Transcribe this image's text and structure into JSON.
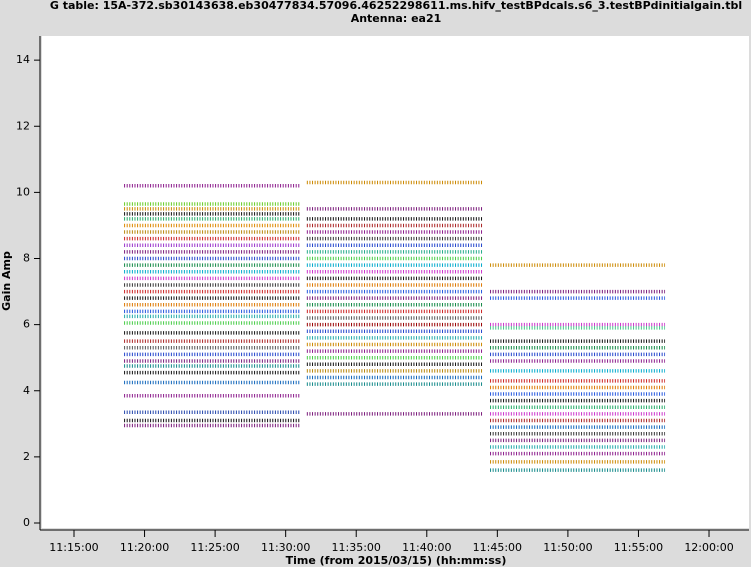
{
  "chart_data": {
    "type": "line",
    "linestyle": "dotted",
    "title": "G table: 15A-372.sb30143638.eb30477834.57096.46252298611.ms.hifv_testBPdcals.s6_3.testBPdinitialgain.tbl",
    "subtitle": "Antenna: ea21",
    "xlabel": "Time (from 2015/03/15) (hh:mm:ss)",
    "ylabel": "Gain Amp",
    "xlim": [
      40364,
      43370
    ],
    "ylim": [
      0,
      14.73
    ],
    "xticks": [
      {
        "value": 40500,
        "label": "11:15:00"
      },
      {
        "value": 40800,
        "label": "11:20:00"
      },
      {
        "value": 41100,
        "label": "11:25:00"
      },
      {
        "value": 41400,
        "label": "11:30:00"
      },
      {
        "value": 41700,
        "label": "11:35:00"
      },
      {
        "value": 42000,
        "label": "11:40:00"
      },
      {
        "value": 42300,
        "label": "11:45:00"
      },
      {
        "value": 42600,
        "label": "11:50:00"
      },
      {
        "value": 42900,
        "label": "11:55:00"
      },
      {
        "value": 43200,
        "label": "12:00:00"
      }
    ],
    "yticks": [
      0,
      2,
      4,
      6,
      8,
      10,
      12,
      14
    ],
    "series": [
      {
        "color": "#8b1a8b",
        "x": [
          40713,
          41461
        ],
        "values": [
          10.2,
          10.2
        ]
      },
      {
        "color": "#66cc22",
        "x": [
          40713,
          41461
        ],
        "values": [
          9.65,
          9.65
        ]
      },
      {
        "color": "#cc8800",
        "x": [
          40713,
          41461
        ],
        "values": [
          9.5,
          9.5
        ]
      },
      {
        "color": "#111111",
        "x": [
          40713,
          41461
        ],
        "values": [
          9.35,
          9.35
        ]
      },
      {
        "color": "#22aa66",
        "x": [
          40713,
          41461
        ],
        "values": [
          9.2,
          9.2
        ]
      },
      {
        "color": "#dd8800",
        "x": [
          40713,
          41461
        ],
        "values": [
          9.0,
          9.0
        ]
      },
      {
        "color": "#b8860b",
        "x": [
          40713,
          41461
        ],
        "values": [
          8.8,
          8.8
        ]
      },
      {
        "color": "#cc2222",
        "x": [
          40713,
          41461
        ],
        "values": [
          8.6,
          8.6
        ]
      },
      {
        "color": "#9933cc",
        "x": [
          40713,
          41461
        ],
        "values": [
          8.4,
          8.4
        ]
      },
      {
        "color": "#7a1a7a",
        "x": [
          40713,
          41461
        ],
        "values": [
          8.2,
          8.2
        ]
      },
      {
        "color": "#2244cc",
        "x": [
          40713,
          41461
        ],
        "values": [
          8.0,
          8.0
        ]
      },
      {
        "color": "#118844",
        "x": [
          40713,
          41461
        ],
        "values": [
          7.8,
          7.8
        ]
      },
      {
        "color": "#00aacc",
        "x": [
          40713,
          41461
        ],
        "values": [
          7.6,
          7.6
        ]
      },
      {
        "color": "#cc33cc",
        "x": [
          40713,
          41461
        ],
        "values": [
          7.4,
          7.4
        ]
      },
      {
        "color": "#333333",
        "x": [
          40713,
          41461
        ],
        "values": [
          7.2,
          7.2
        ]
      },
      {
        "color": "#cc2222",
        "x": [
          40713,
          41461
        ],
        "values": [
          7.0,
          7.0
        ]
      },
      {
        "color": "#111111",
        "x": [
          40713,
          41461
        ],
        "values": [
          6.8,
          6.8
        ]
      },
      {
        "color": "#dd7700",
        "x": [
          40713,
          41461
        ],
        "values": [
          6.6,
          6.6
        ]
      },
      {
        "color": "#2255dd",
        "x": [
          40713,
          41461
        ],
        "values": [
          6.4,
          6.4
        ]
      },
      {
        "color": "#22aaaa",
        "x": [
          40713,
          41461
        ],
        "values": [
          6.25,
          6.25
        ]
      },
      {
        "color": "#44cc44",
        "x": [
          40713,
          41461
        ],
        "values": [
          6.05,
          6.05
        ]
      },
      {
        "color": "#111111",
        "x": [
          40713,
          41461
        ],
        "values": [
          5.75,
          5.75
        ]
      },
      {
        "color": "#aa2222",
        "x": [
          40713,
          41461
        ],
        "values": [
          5.5,
          5.5
        ]
      },
      {
        "color": "#555555",
        "x": [
          40713,
          41461
        ],
        "values": [
          5.3,
          5.3
        ]
      },
      {
        "color": "#2244cc",
        "x": [
          40713,
          41461
        ],
        "values": [
          5.1,
          5.1
        ]
      },
      {
        "color": "#7a1a7a",
        "x": [
          40713,
          41461
        ],
        "values": [
          4.9,
          4.9
        ]
      },
      {
        "color": "#118888",
        "x": [
          40713,
          41461
        ],
        "values": [
          4.75,
          4.75
        ]
      },
      {
        "color": "#111111",
        "x": [
          40713,
          41461
        ],
        "values": [
          4.55,
          4.55
        ]
      },
      {
        "color": "#1166bb",
        "x": [
          40713,
          41461
        ],
        "values": [
          4.25,
          4.25
        ]
      },
      {
        "color": "#8b1a8b",
        "x": [
          40713,
          41461
        ],
        "values": [
          3.85,
          3.85
        ]
      },
      {
        "color": "#2244aa",
        "x": [
          40713,
          41461
        ],
        "values": [
          3.35,
          3.35
        ]
      },
      {
        "color": "#111111",
        "x": [
          40713,
          41461
        ],
        "values": [
          3.1,
          3.1
        ]
      },
      {
        "color": "#7a1a7a",
        "x": [
          40713,
          41461
        ],
        "values": [
          2.95,
          2.95
        ]
      },
      {
        "color": "#cc8800",
        "x": [
          41490,
          42239
        ],
        "values": [
          10.3,
          10.3
        ]
      },
      {
        "color": "#7a1a7a",
        "x": [
          41490,
          42239
        ],
        "values": [
          9.5,
          9.5
        ]
      },
      {
        "color": "#111111",
        "x": [
          41490,
          42239
        ],
        "values": [
          9.2,
          9.2
        ]
      },
      {
        "color": "#aa2222",
        "x": [
          41490,
          42239
        ],
        "values": [
          9.0,
          9.0
        ]
      },
      {
        "color": "#8b1a8b",
        "x": [
          41490,
          42239
        ],
        "values": [
          8.8,
          8.8
        ]
      },
      {
        "color": "#333333",
        "x": [
          41490,
          42239
        ],
        "values": [
          8.6,
          8.6
        ]
      },
      {
        "color": "#2244cc",
        "x": [
          41490,
          42239
        ],
        "values": [
          8.4,
          8.4
        ]
      },
      {
        "color": "#22aa88",
        "x": [
          41490,
          42239
        ],
        "values": [
          8.2,
          8.2
        ]
      },
      {
        "color": "#44cc44",
        "x": [
          41490,
          42239
        ],
        "values": [
          8.0,
          8.0
        ]
      },
      {
        "color": "#00aacc",
        "x": [
          41490,
          42239
        ],
        "values": [
          7.8,
          7.8
        ]
      },
      {
        "color": "#cc33cc",
        "x": [
          41490,
          42239
        ],
        "values": [
          7.6,
          7.6
        ]
      },
      {
        "color": "#111111",
        "x": [
          41490,
          42239
        ],
        "values": [
          7.4,
          7.4
        ]
      },
      {
        "color": "#dd7700",
        "x": [
          41490,
          42239
        ],
        "values": [
          7.2,
          7.2
        ]
      },
      {
        "color": "#2255dd",
        "x": [
          41490,
          42239
        ],
        "values": [
          7.0,
          7.0
        ]
      },
      {
        "color": "#7a1a7a",
        "x": [
          41490,
          42239
        ],
        "values": [
          6.8,
          6.8
        ]
      },
      {
        "color": "#118844",
        "x": [
          41490,
          42239
        ],
        "values": [
          6.6,
          6.6
        ]
      },
      {
        "color": "#cc2222",
        "x": [
          41490,
          42239
        ],
        "values": [
          6.4,
          6.4
        ]
      },
      {
        "color": "#555555",
        "x": [
          41490,
          42239
        ],
        "values": [
          6.2,
          6.2
        ]
      },
      {
        "color": "#990000",
        "x": [
          41490,
          42239
        ],
        "values": [
          6.0,
          6.0
        ]
      },
      {
        "color": "#2244cc",
        "x": [
          41490,
          42239
        ],
        "values": [
          5.8,
          5.8
        ]
      },
      {
        "color": "#22aaaa",
        "x": [
          41490,
          42239
        ],
        "values": [
          5.6,
          5.6
        ]
      },
      {
        "color": "#cc8800",
        "x": [
          41490,
          42239
        ],
        "values": [
          5.4,
          5.4
        ]
      },
      {
        "color": "#8b1a8b",
        "x": [
          41490,
          42239
        ],
        "values": [
          5.2,
          5.2
        ]
      },
      {
        "color": "#44cc44",
        "x": [
          41490,
          42239
        ],
        "values": [
          5.0,
          5.0
        ]
      },
      {
        "color": "#111111",
        "x": [
          41490,
          42239
        ],
        "values": [
          4.8,
          4.8
        ]
      },
      {
        "color": "#b8860b",
        "x": [
          41490,
          42239
        ],
        "values": [
          4.6,
          4.6
        ]
      },
      {
        "color": "#1166bb",
        "x": [
          41490,
          42239
        ],
        "values": [
          4.4,
          4.4
        ]
      },
      {
        "color": "#118888",
        "x": [
          41490,
          42239
        ],
        "values": [
          4.2,
          4.2
        ]
      },
      {
        "color": "#7a1a7a",
        "x": [
          41490,
          42239
        ],
        "values": [
          3.3,
          3.3
        ]
      },
      {
        "color": "#cc8800",
        "x": [
          42269,
          43013
        ],
        "values": [
          7.8,
          7.8
        ]
      },
      {
        "color": "#7a1a7a",
        "x": [
          42269,
          43013
        ],
        "values": [
          7.0,
          7.0
        ]
      },
      {
        "color": "#2255dd",
        "x": [
          42269,
          43013
        ],
        "values": [
          6.8,
          6.8
        ]
      },
      {
        "color": "#cc33cc",
        "x": [
          42269,
          43013
        ],
        "values": [
          6.0,
          6.0
        ]
      },
      {
        "color": "#44cc88",
        "x": [
          42269,
          43013
        ],
        "values": [
          5.9,
          5.9
        ]
      },
      {
        "color": "#111111",
        "x": [
          42269,
          43013
        ],
        "values": [
          5.5,
          5.5
        ]
      },
      {
        "color": "#118844",
        "x": [
          42269,
          43013
        ],
        "values": [
          5.3,
          5.3
        ]
      },
      {
        "color": "#2244cc",
        "x": [
          42269,
          43013
        ],
        "values": [
          5.1,
          5.1
        ]
      },
      {
        "color": "#8b1a8b",
        "x": [
          42269,
          43013
        ],
        "values": [
          4.9,
          4.9
        ]
      },
      {
        "color": "#00aacc",
        "x": [
          42269,
          43013
        ],
        "values": [
          4.6,
          4.6
        ]
      },
      {
        "color": "#cc2222",
        "x": [
          42269,
          43013
        ],
        "values": [
          4.3,
          4.3
        ]
      },
      {
        "color": "#dd7700",
        "x": [
          42269,
          43013
        ],
        "values": [
          4.1,
          4.1
        ]
      },
      {
        "color": "#2255dd",
        "x": [
          42269,
          43013
        ],
        "values": [
          3.9,
          3.9
        ]
      },
      {
        "color": "#111111",
        "x": [
          42269,
          43013
        ],
        "values": [
          3.7,
          3.7
        ]
      },
      {
        "color": "#22aa66",
        "x": [
          42269,
          43013
        ],
        "values": [
          3.5,
          3.5
        ]
      },
      {
        "color": "#cc33cc",
        "x": [
          42269,
          43013
        ],
        "values": [
          3.3,
          3.3
        ]
      },
      {
        "color": "#aa2222",
        "x": [
          42269,
          43013
        ],
        "values": [
          3.1,
          3.1
        ]
      },
      {
        "color": "#1166bb",
        "x": [
          42269,
          43013
        ],
        "values": [
          2.9,
          2.9
        ]
      },
      {
        "color": "#333333",
        "x": [
          42269,
          43013
        ],
        "values": [
          2.7,
          2.7
        ]
      },
      {
        "color": "#7a1a7a",
        "x": [
          42269,
          43013
        ],
        "values": [
          2.5,
          2.5
        ]
      },
      {
        "color": "#22aaaa",
        "x": [
          42269,
          43013
        ],
        "values": [
          2.3,
          2.3
        ]
      },
      {
        "color": "#8b1a8b",
        "x": [
          42269,
          43013
        ],
        "values": [
          2.1,
          2.1
        ]
      },
      {
        "color": "#cc8800",
        "x": [
          42269,
          43013
        ],
        "values": [
          1.85,
          1.85
        ]
      },
      {
        "color": "#118888",
        "x": [
          42269,
          43013
        ],
        "values": [
          1.6,
          1.6
        ]
      }
    ]
  }
}
